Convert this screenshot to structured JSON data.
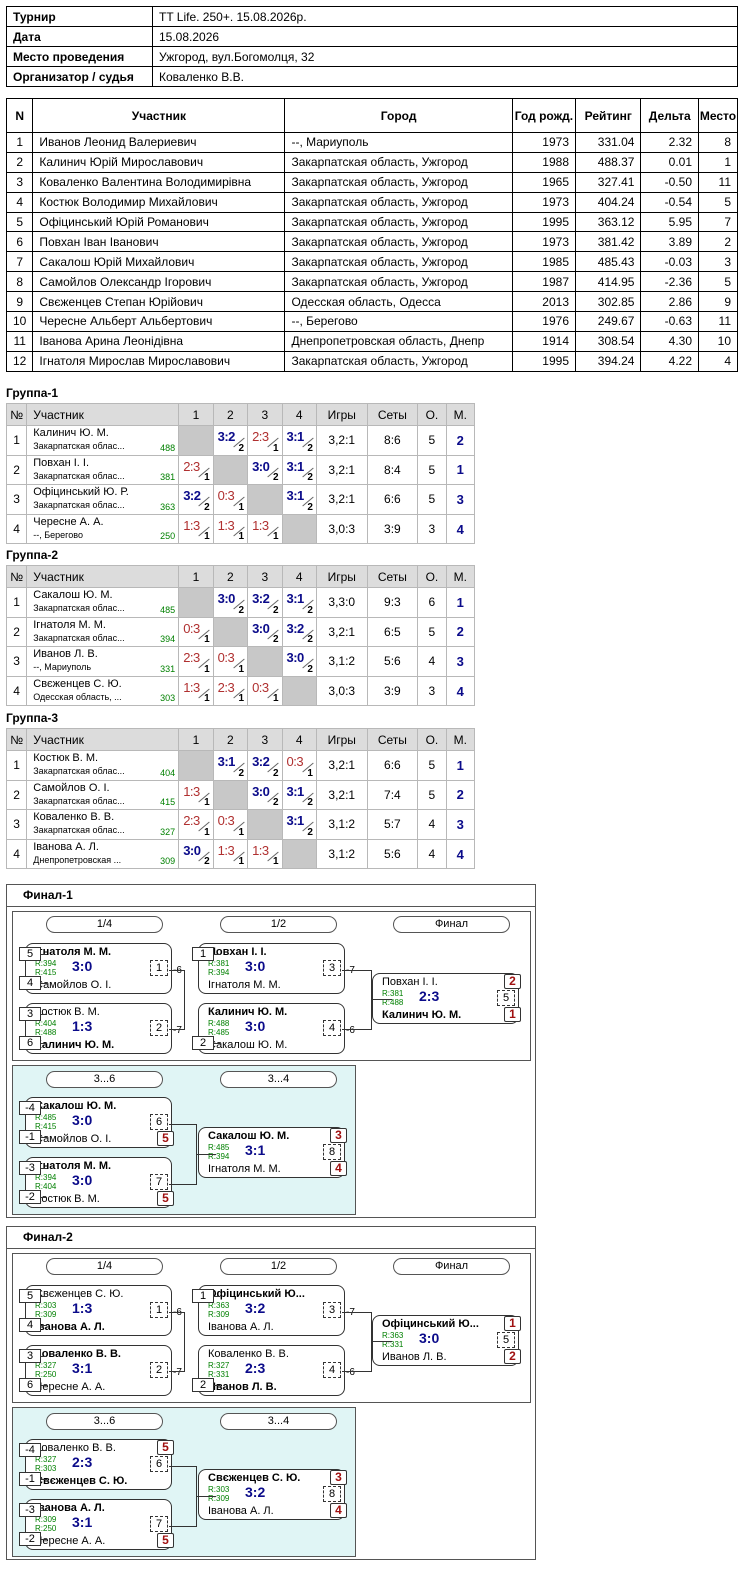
{
  "info": {
    "tournament_label": "Турнир",
    "tournament": "TT Life. 250+. 15.08.2026р.",
    "date_label": "Дата",
    "date": "15.08.2026",
    "venue_label": "Место проведения",
    "venue": "Ужгород, вул.Богомолця, 32",
    "org_label": "Организатор / судья",
    "org": "Коваленко В.В."
  },
  "participants": {
    "headers": [
      "N",
      "Участник",
      "Город",
      "Год рожд.",
      "Рейтинг",
      "Дельта",
      "Место"
    ],
    "rows": [
      [
        "1",
        "Иванов Леонид Валериевич",
        "--, Мариуполь",
        "1973",
        "331.04",
        "2.32",
        "8"
      ],
      [
        "2",
        "Калинич Юрій Мирославович",
        "Закарпатская область, Ужгород",
        "1988",
        "488.37",
        "0.01",
        "1"
      ],
      [
        "3",
        "Коваленко Валентина Володимирівна",
        "Закарпатская область, Ужгород",
        "1965",
        "327.41",
        "-0.50",
        "11"
      ],
      [
        "4",
        "Костюк Володимир Михайлович",
        "Закарпатская область, Ужгород",
        "1973",
        "404.24",
        "-0.54",
        "5"
      ],
      [
        "5",
        "Офіцинський Юрій Романович",
        "Закарпатская область, Ужгород",
        "1995",
        "363.12",
        "5.95",
        "7"
      ],
      [
        "6",
        "Повхан Іван Іванович",
        "Закарпатская область, Ужгород",
        "1973",
        "381.42",
        "3.89",
        "2"
      ],
      [
        "7",
        "Сакалош Юрій Михайлович",
        "Закарпатская область, Ужгород",
        "1985",
        "485.43",
        "-0.03",
        "3"
      ],
      [
        "8",
        "Самойлов Олександр Ігорович",
        "Закарпатская область, Ужгород",
        "1987",
        "414.95",
        "-2.36",
        "5"
      ],
      [
        "9",
        "Свєженцев Степан Юрійович",
        "Одесская область, Одесса",
        "2013",
        "302.85",
        "2.86",
        "9"
      ],
      [
        "10",
        "Чересне Альберт Альбертович",
        "--, Берегово",
        "1976",
        "249.67",
        "-0.63",
        "11"
      ],
      [
        "11",
        "Іванова Арина Леонідівна",
        "Днепропетровская область, Днепр",
        "1914",
        "308.54",
        "4.30",
        "10"
      ],
      [
        "12",
        "Ігнатоля Мирослав Мирославович",
        "Закарпатская область, Ужгород",
        "1995",
        "394.24",
        "4.22",
        "4"
      ]
    ]
  },
  "group_headers": [
    "№",
    "Участник",
    "1",
    "2",
    "3",
    "4",
    "Игры",
    "Сеты",
    "О.",
    "М."
  ],
  "groups": [
    {
      "title": "Группа-1",
      "rows": [
        {
          "n": "1",
          "name": "Калинич Ю. М.",
          "city": "Закарпатская облас...",
          "rating": "488",
          "cells": [
            null,
            [
              "3:2",
              "2",
              "w"
            ],
            [
              "2:3",
              "1",
              "l"
            ],
            [
              "3:1",
              "2",
              "w"
            ]
          ],
          "games": "3,2:1",
          "sets": "8:6",
          "pts": "5",
          "place": "2"
        },
        {
          "n": "2",
          "name": "Повхан І. І.",
          "city": "Закарпатская облас...",
          "rating": "381",
          "cells": [
            [
              "2:3",
              "1",
              "l"
            ],
            null,
            [
              "3:0",
              "2",
              "w"
            ],
            [
              "3:1",
              "2",
              "w"
            ]
          ],
          "games": "3,2:1",
          "sets": "8:4",
          "pts": "5",
          "place": "1"
        },
        {
          "n": "3",
          "name": "Офіцинський Ю. Р.",
          "city": "Закарпатская облас...",
          "rating": "363",
          "cells": [
            [
              "3:2",
              "2",
              "w"
            ],
            [
              "0:3",
              "1",
              "l"
            ],
            null,
            [
              "3:1",
              "2",
              "w"
            ]
          ],
          "games": "3,2:1",
          "sets": "6:6",
          "pts": "5",
          "place": "3"
        },
        {
          "n": "4",
          "name": "Чересне А. А.",
          "city": "--, Берегово",
          "rating": "250",
          "cells": [
            [
              "1:3",
              "1",
              "l"
            ],
            [
              "1:3",
              "1",
              "l"
            ],
            [
              "1:3",
              "1",
              "l"
            ],
            null
          ],
          "games": "3,0:3",
          "sets": "3:9",
          "pts": "3",
          "place": "4"
        }
      ]
    },
    {
      "title": "Группа-2",
      "rows": [
        {
          "n": "1",
          "name": "Сакалош Ю. М.",
          "city": "Закарпатская облас...",
          "rating": "485",
          "cells": [
            null,
            [
              "3:0",
              "2",
              "w"
            ],
            [
              "3:2",
              "2",
              "w"
            ],
            [
              "3:1",
              "2",
              "w"
            ]
          ],
          "games": "3,3:0",
          "sets": "9:3",
          "pts": "6",
          "place": "1"
        },
        {
          "n": "2",
          "name": "Ігнатоля М. М.",
          "city": "Закарпатская облас...",
          "rating": "394",
          "cells": [
            [
              "0:3",
              "1",
              "l"
            ],
            null,
            [
              "3:0",
              "2",
              "w"
            ],
            [
              "3:2",
              "2",
              "w"
            ]
          ],
          "games": "3,2:1",
          "sets": "6:5",
          "pts": "5",
          "place": "2"
        },
        {
          "n": "3",
          "name": "Иванов Л. В.",
          "city": "--, Мариуполь",
          "rating": "331",
          "cells": [
            [
              "2:3",
              "1",
              "l"
            ],
            [
              "0:3",
              "1",
              "l"
            ],
            null,
            [
              "3:0",
              "2",
              "w"
            ]
          ],
          "games": "3,1:2",
          "sets": "5:6",
          "pts": "4",
          "place": "3"
        },
        {
          "n": "4",
          "name": "Свєженцев С. Ю.",
          "city": "Одесская область, ...",
          "rating": "303",
          "cells": [
            [
              "1:3",
              "1",
              "l"
            ],
            [
              "2:3",
              "1",
              "l"
            ],
            [
              "0:3",
              "1",
              "l"
            ],
            null
          ],
          "games": "3,0:3",
          "sets": "3:9",
          "pts": "3",
          "place": "4"
        }
      ]
    },
    {
      "title": "Группа-3",
      "rows": [
        {
          "n": "1",
          "name": "Костюк В. М.",
          "city": "Закарпатская облас...",
          "rating": "404",
          "cells": [
            null,
            [
              "3:1",
              "2",
              "w"
            ],
            [
              "3:2",
              "2",
              "w"
            ],
            [
              "0:3",
              "1",
              "l"
            ]
          ],
          "games": "3,2:1",
          "sets": "6:6",
          "pts": "5",
          "place": "1"
        },
        {
          "n": "2",
          "name": "Самойлов О. І.",
          "city": "Закарпатская облас...",
          "rating": "415",
          "cells": [
            [
              "1:3",
              "1",
              "l"
            ],
            null,
            [
              "3:0",
              "2",
              "w"
            ],
            [
              "3:1",
              "2",
              "w"
            ]
          ],
          "games": "3,2:1",
          "sets": "7:4",
          "pts": "5",
          "place": "2"
        },
        {
          "n": "3",
          "name": "Коваленко В. В.",
          "city": "Закарпатская облас...",
          "rating": "327",
          "cells": [
            [
              "2:3",
              "1",
              "l"
            ],
            [
              "0:3",
              "1",
              "l"
            ],
            null,
            [
              "3:1",
              "2",
              "w"
            ]
          ],
          "games": "3,1:2",
          "sets": "5:7",
          "pts": "4",
          "place": "3"
        },
        {
          "n": "4",
          "name": "Іванова А. Л.",
          "city": "Днепропетровская ...",
          "rating": "309",
          "cells": [
            [
              "3:0",
              "2",
              "w"
            ],
            [
              "1:3",
              "1",
              "l"
            ],
            [
              "1:3",
              "1",
              "l"
            ],
            null
          ],
          "games": "3,1:2",
          "sets": "5:6",
          "pts": "4",
          "place": "4"
        }
      ]
    }
  ],
  "finals": [
    {
      "title": "Финал-1",
      "rounds": [
        "1/4",
        "1/2",
        "Финал"
      ],
      "cons_rounds": [
        "3...6",
        "3...4"
      ],
      "matches": [
        {
          "p1": "Ігнатоля М. М.",
          "p2": "Самойлов О. І.",
          "r1": "R:394",
          "r2": "R:415",
          "res": "3:0",
          "mn": "1",
          "w": 1,
          "s1": "5",
          "s2": "4",
          "lt": "-6"
        },
        {
          "p1": "Костюк В. М.",
          "p2": "Калинич Ю. М.",
          "r1": "R:404",
          "r2": "R:488",
          "res": "1:3",
          "mn": "2",
          "w": 2,
          "s1": "3",
          "s2": "6",
          "lt": "-7"
        },
        {
          "p1": "Повхан І. І.",
          "p2": "Ігнатоля М. М.",
          "r1": "R:381",
          "r2": "R:394",
          "res": "3:0",
          "mn": "3",
          "w": 1,
          "s1": "1",
          "lt": "-7"
        },
        {
          "p1": "Калинич Ю. М.",
          "p2": "Сакалош Ю. М.",
          "r1": "R:488",
          "r2": "R:485",
          "res": "3:0",
          "mn": "4",
          "w": 1,
          "s2": "2",
          "lt": "-6"
        },
        {
          "p1": "Повхан І. І.",
          "p2": "Калинич Ю. М.",
          "r1": "R:381",
          "r2": "R:488",
          "res": "2:3",
          "mn": "5",
          "w": 2,
          "pb1": "2",
          "pb2": "1"
        },
        {
          "p1": "Сакалош Ю. М.",
          "p2": "Самойлов О. І.",
          "r1": "R:485",
          "r2": "R:415",
          "res": "3:0",
          "mn": "6",
          "w": 1,
          "s1": "-4",
          "s2": "-1",
          "pb2": "5"
        },
        {
          "p1": "Ігнатоля М. М.",
          "p2": "Костюк В. М.",
          "r1": "R:394",
          "r2": "R:404",
          "res": "3:0",
          "mn": "7",
          "w": 1,
          "s1": "-3",
          "s2": "-2",
          "pb2": "5"
        },
        {
          "p1": "Сакалош Ю. М.",
          "p2": "Ігнатоля М. М.",
          "r1": "R:485",
          "r2": "R:394",
          "res": "3:1",
          "mn": "8",
          "w": 1,
          "pb1": "3",
          "pb2": "4"
        }
      ]
    },
    {
      "title": "Финал-2",
      "rounds": [
        "1/4",
        "1/2",
        "Финал"
      ],
      "cons_rounds": [
        "3...6",
        "3...4"
      ],
      "matches": [
        {
          "p1": "Свєженцев С. Ю.",
          "p2": "Іванова А. Л.",
          "r1": "R:303",
          "r2": "R:309",
          "res": "1:3",
          "mn": "1",
          "w": 2,
          "s1": "5",
          "s2": "4",
          "lt": "-6"
        },
        {
          "p1": "Коваленко В. В.",
          "p2": "Чересне А. А.",
          "r1": "R:327",
          "r2": "R:250",
          "res": "3:1",
          "mn": "2",
          "w": 1,
          "s1": "3",
          "s2": "6",
          "lt": "-7"
        },
        {
          "p1": "Офіцинський Ю...",
          "p2": "Іванова А. Л.",
          "r1": "R:363",
          "r2": "R:309",
          "res": "3:2",
          "mn": "3",
          "w": 1,
          "s1": "1",
          "lt": "-7"
        },
        {
          "p1": "Коваленко В. В.",
          "p2": "Иванов Л. В.",
          "r1": "R:327",
          "r2": "R:331",
          "res": "2:3",
          "mn": "4",
          "w": 2,
          "s2": "2",
          "lt": "-6"
        },
        {
          "p1": "Офіцинський Ю...",
          "p2": "Иванов Л. В.",
          "r1": "R:363",
          "r2": "R:331",
          "res": "3:0",
          "mn": "5",
          "w": 1,
          "pb1": "1",
          "pb2": "2"
        },
        {
          "p1": "Коваленко В. В.",
          "p2": "Свєженцев С. Ю.",
          "r1": "R:327",
          "r2": "R:303",
          "res": "2:3",
          "mn": "6",
          "w": 2,
          "s1": "-4",
          "s2": "-1",
          "pb1": "5"
        },
        {
          "p1": "Іванова А. Л.",
          "p2": "Чересне А. А.",
          "r1": "R:309",
          "r2": "R:250",
          "res": "3:1",
          "mn": "7",
          "w": 1,
          "s1": "-3",
          "s2": "-2",
          "pb2": "5"
        },
        {
          "p1": "Свєженцев С. Ю.",
          "p2": "Іванова А. Л.",
          "r1": "R:303",
          "r2": "R:309",
          "res": "3:2",
          "mn": "8",
          "w": 1,
          "pb1": "3",
          "pb2": "4"
        }
      ]
    }
  ]
}
